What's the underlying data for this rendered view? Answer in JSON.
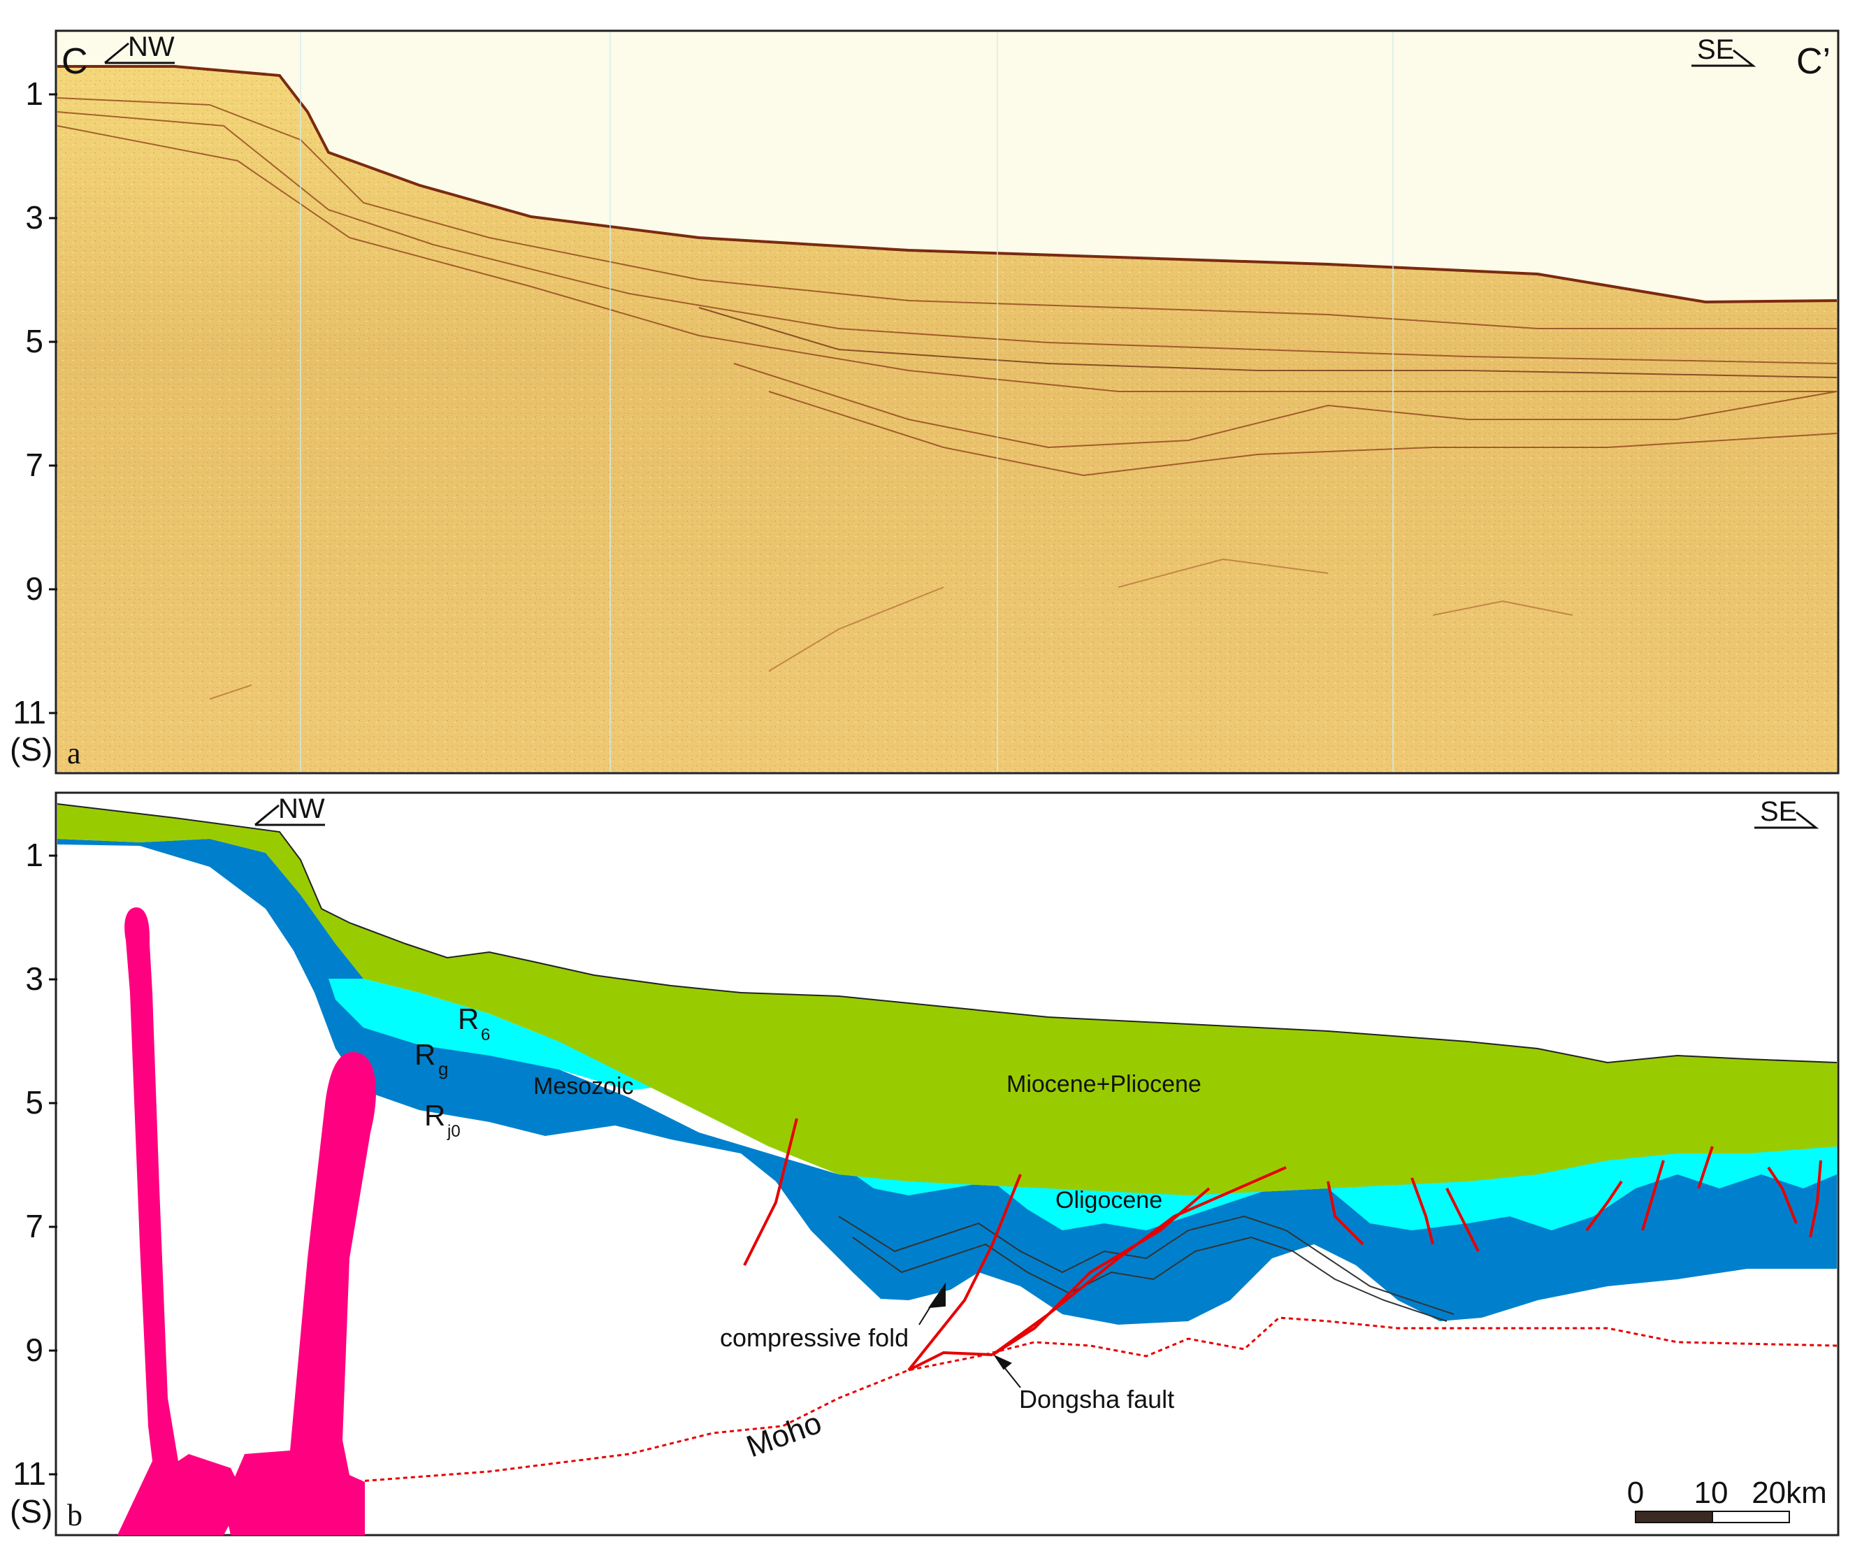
{
  "panel_a": {
    "left_label": "C",
    "right_label": "C’",
    "left_direction": "NW",
    "right_direction": "SE",
    "panel_letter": "a",
    "y_ticks": [
      "1",
      "3",
      "5",
      "7",
      "9",
      "11"
    ],
    "y_unit": "(S)"
  },
  "panel_b": {
    "left_direction": "NW",
    "right_direction": "SE",
    "panel_letter": "b",
    "y_ticks": [
      "1",
      "3",
      "5",
      "7",
      "9",
      "11"
    ],
    "y_unit": "(S)",
    "layers": {
      "upper": "Miocene+Pliocene",
      "middle": "Oligocene",
      "lower": "Mesozoic"
    },
    "horizons": {
      "r6_base": "R",
      "r6_sub": "6",
      "rg_base": "R",
      "rg_sub": "g",
      "rj0_base": "R",
      "rj0_sub": "j0"
    },
    "annotations": {
      "fold": "compressive fold",
      "fault": "Dongsha fault",
      "moho": "Moho"
    },
    "scale_bar": {
      "labels": [
        "0",
        "10",
        "20km"
      ]
    },
    "colors": {
      "miocene_pliocene": "#99cc00",
      "oligocene": "#00ffff",
      "mesozoic": "#0080cc",
      "intrusion": "#ff0080",
      "faults": "#e60000"
    }
  }
}
